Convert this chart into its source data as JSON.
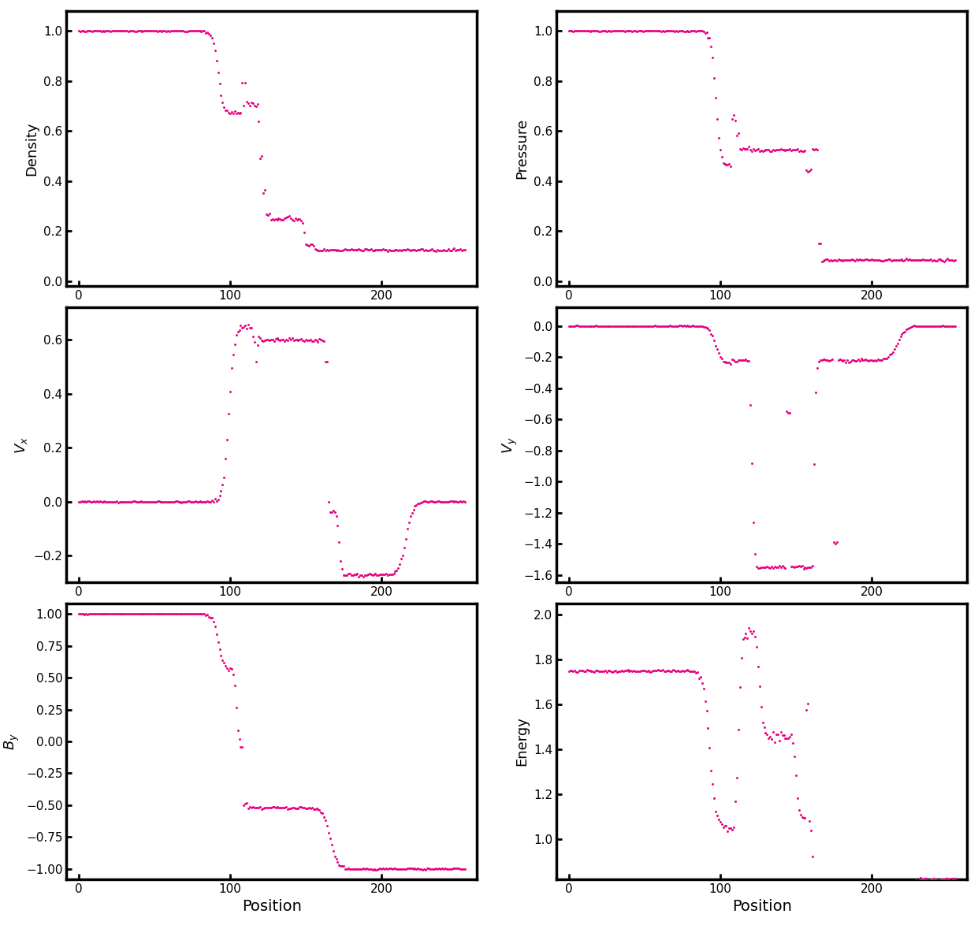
{
  "color": "#E8007F",
  "markersize": 4.5,
  "xlabel": "Position",
  "xlabel_fontsize": 14,
  "figsize": [
    12.41,
    11.74
  ],
  "dpi": 100,
  "plots": [
    {
      "ylabel": "Density",
      "ylim": [
        -0.02,
        1.08
      ]
    },
    {
      "ylabel": "Pressure",
      "ylim": [
        -0.02,
        1.08
      ]
    },
    {
      "ylabel": "$V_x$",
      "ylim": [
        -0.3,
        0.72
      ]
    },
    {
      "ylabel": "$V_y$",
      "ylim": [
        -1.65,
        0.12
      ]
    },
    {
      "ylabel": "$B_y$",
      "ylim": [
        -1.08,
        1.08
      ]
    },
    {
      "ylabel": "Energy",
      "ylim": [
        0.82,
        2.05
      ]
    }
  ]
}
